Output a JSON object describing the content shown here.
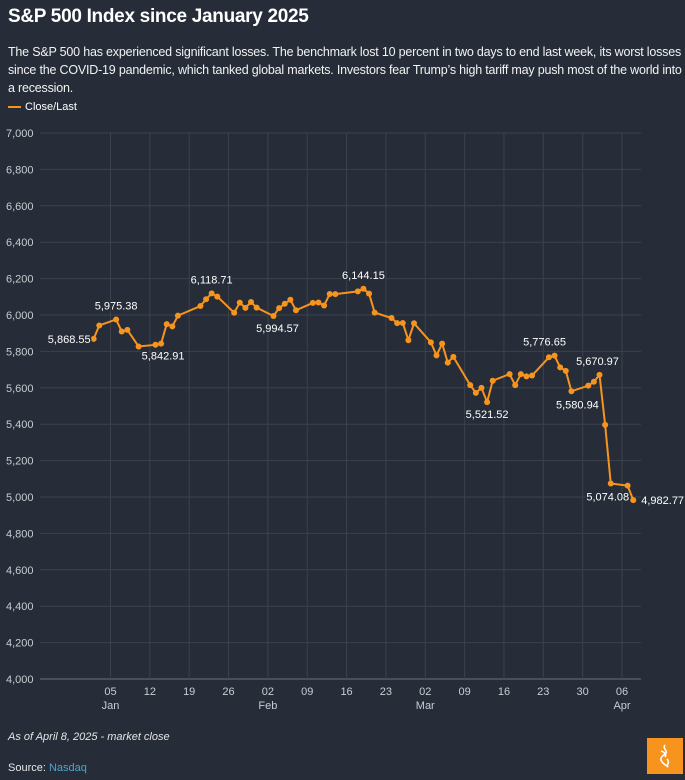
{
  "title": "S&P 500 Index since January 2025",
  "subtitle": "The S&P 500 has experienced significant losses. The benchmark lost 10 percent in two days to end last week, its worst losses since the COVID-19 pandemic, which tanked global markets. Investors fear Trump’s high tariff may push most of the world into a recession.",
  "footnote": "As of April 8, 2025 - market close",
  "source_label": "Source:",
  "source_name": "Nasdaq",
  "logo_text": "Al Jazeera",
  "chart_data": {
    "type": "line",
    "legend_position": "top-left",
    "grid": true,
    "series": [
      {
        "name": "Close/Last",
        "color": "#f7941d",
        "x": [
          "2025-01-02",
          "2025-01-03",
          "2025-01-06",
          "2025-01-07",
          "2025-01-08",
          "2025-01-10",
          "2025-01-13",
          "2025-01-14",
          "2025-01-15",
          "2025-01-16",
          "2025-01-17",
          "2025-01-21",
          "2025-01-22",
          "2025-01-23",
          "2025-01-24",
          "2025-01-27",
          "2025-01-28",
          "2025-01-29",
          "2025-01-30",
          "2025-01-31",
          "2025-02-03",
          "2025-02-04",
          "2025-02-05",
          "2025-02-06",
          "2025-02-07",
          "2025-02-10",
          "2025-02-11",
          "2025-02-12",
          "2025-02-13",
          "2025-02-14",
          "2025-02-18",
          "2025-02-19",
          "2025-02-20",
          "2025-02-21",
          "2025-02-24",
          "2025-02-25",
          "2025-02-26",
          "2025-02-27",
          "2025-02-28",
          "2025-03-03",
          "2025-03-04",
          "2025-03-05",
          "2025-03-06",
          "2025-03-07",
          "2025-03-10",
          "2025-03-11",
          "2025-03-12",
          "2025-03-13",
          "2025-03-14",
          "2025-03-17",
          "2025-03-18",
          "2025-03-19",
          "2025-03-20",
          "2025-03-21",
          "2025-03-24",
          "2025-03-25",
          "2025-03-26",
          "2025-03-27",
          "2025-03-28",
          "2025-03-31",
          "2025-04-01",
          "2025-04-02",
          "2025-04-03",
          "2025-04-04",
          "2025-04-07",
          "2025-04-08"
        ],
        "values": [
          5868.55,
          5942.47,
          5975.38,
          5909.03,
          5918.25,
          5827.04,
          5836.22,
          5842.91,
          5949.91,
          5937.34,
          5996.66,
          6049.24,
          6086.37,
          6118.71,
          6101.24,
          6012.28,
          6067.7,
          6039.31,
          6071.17,
          6040.53,
          5994.57,
          6037.88,
          6061.48,
          6083.57,
          6025.99,
          6066.44,
          6068.5,
          6051.97,
          6115.07,
          6114.63,
          6129.58,
          6144.15,
          6117.52,
          6013.13,
          5983.25,
          5955.25,
          5956.06,
          5861.57,
          5954.5,
          5849.72,
          5778.15,
          5842.63,
          5738.52,
          5770.2,
          5614.56,
          5572.07,
          5599.3,
          5521.52,
          5638.94,
          5675.12,
          5614.66,
          5675.29,
          5662.89,
          5667.56,
          5767.57,
          5776.65,
          5712.2,
          5693.31,
          5580.94,
          5611.85,
          5633.07,
          5670.97,
          5396.52,
          5074.08,
          5062.25,
          4982.77
        ]
      }
    ],
    "data_labels": [
      {
        "date": "2025-01-02",
        "text": "5,868.55"
      },
      {
        "date": "2025-01-06",
        "text": "5,975.38"
      },
      {
        "date": "2025-01-14",
        "text": "5,842.91"
      },
      {
        "date": "2025-01-23",
        "text": "6,118.71"
      },
      {
        "date": "2025-02-03",
        "text": "5,994.57"
      },
      {
        "date": "2025-02-19",
        "text": "6,144.15"
      },
      {
        "date": "2025-03-13",
        "text": "5,521.52"
      },
      {
        "date": "2025-03-25",
        "text": "5,776.65"
      },
      {
        "date": "2025-03-28",
        "text": "5,580.94"
      },
      {
        "date": "2025-04-02",
        "text": "5,670.97"
      },
      {
        "date": "2025-04-04",
        "text": "5,074.08"
      },
      {
        "date": "2025-04-08",
        "text": "4,982.77"
      }
    ],
    "ylim": [
      4000,
      7000
    ],
    "yticks": [
      "4,000",
      "4,200",
      "4,400",
      "4,600",
      "4,800",
      "5,000",
      "5,200",
      "5,400",
      "5,600",
      "5,800",
      "6,000",
      "6,200",
      "6,400",
      "6,600",
      "6,800",
      "7,000"
    ],
    "xticks": [
      {
        "date": "2025-01-05",
        "label": "05",
        "month": "Jan"
      },
      {
        "date": "2025-01-12",
        "label": "12"
      },
      {
        "date": "2025-01-19",
        "label": "19"
      },
      {
        "date": "2025-01-26",
        "label": "26"
      },
      {
        "date": "2025-02-02",
        "label": "02",
        "month": "Feb"
      },
      {
        "date": "2025-02-09",
        "label": "09"
      },
      {
        "date": "2025-02-16",
        "label": "16"
      },
      {
        "date": "2025-02-23",
        "label": "23"
      },
      {
        "date": "2025-03-02",
        "label": "02",
        "month": "Mar"
      },
      {
        "date": "2025-03-09",
        "label": "09"
      },
      {
        "date": "2025-03-16",
        "label": "16"
      },
      {
        "date": "2025-03-23",
        "label": "23"
      },
      {
        "date": "2025-03-30",
        "label": "30"
      },
      {
        "date": "2025-04-06",
        "label": "06",
        "month": "Apr"
      }
    ]
  }
}
